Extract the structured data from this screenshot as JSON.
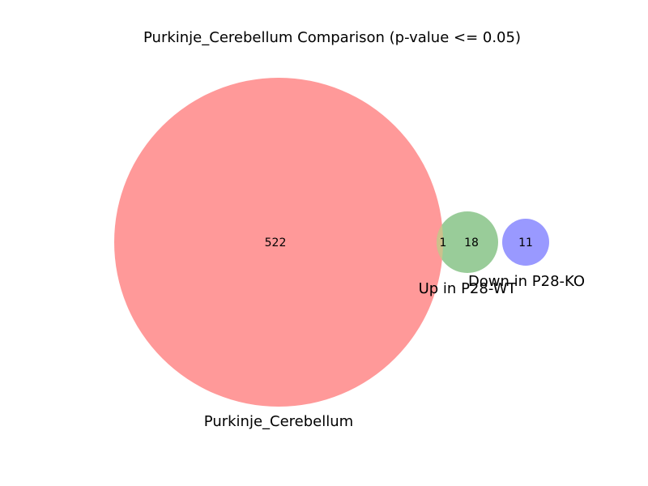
{
  "title": "Purkinje_Cerebellum Comparison (p-value <= 0.05)",
  "sets": [
    {
      "name": "Purkinje_Cerebellum",
      "color": "#ff9999"
    },
    {
      "name": "Up in P28-WT",
      "color": "#99cc99"
    },
    {
      "name": "Down in P28-KO",
      "color": "#9999ff"
    }
  ],
  "regions": {
    "purkinje_only": "522",
    "purkinje_and_up": "1",
    "up_only": "18",
    "down_only": "11"
  },
  "colors": {
    "overlap_purkinje_up": "#cdc08c"
  }
}
